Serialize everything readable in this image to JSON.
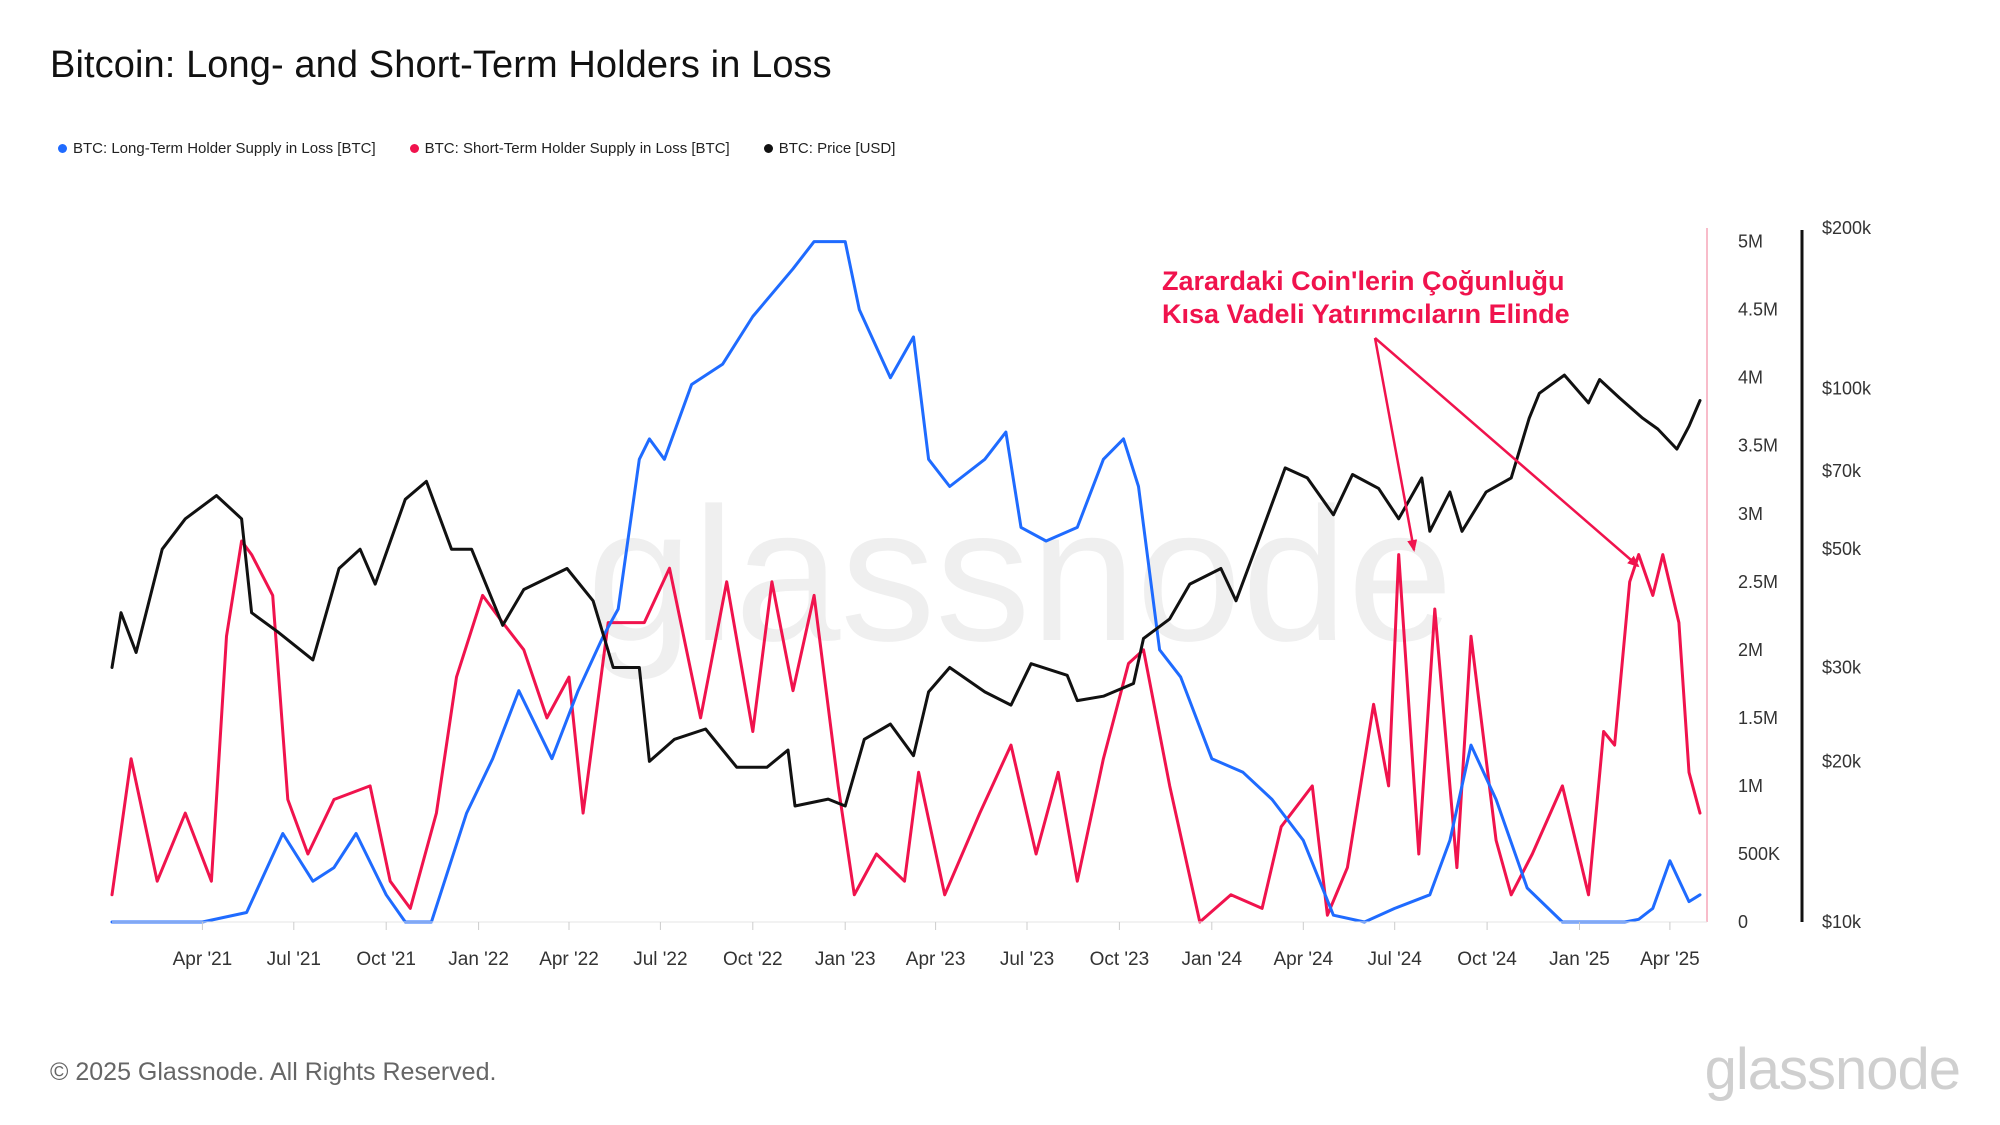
{
  "title": "Bitcoin: Long- and Short-Term Holders in Loss",
  "legend": [
    {
      "label": "BTC: Long-Term Holder Supply in Loss [BTC]",
      "color": "#1f6bff"
    },
    {
      "label": "BTC: Short-Term Holder Supply in Loss [BTC]",
      "color": "#f0134d"
    },
    {
      "label": "BTC: Price [USD]",
      "color": "#111111"
    }
  ],
  "annotation": {
    "line1": "Zarardaki Coin'lerin Çoğunluğu",
    "line2": "Kısa Vadeli Yatırımcıların Elinde",
    "color": "#f0134d"
  },
  "watermark": "glassnode",
  "footer": "© 2025 Glassnode. All Rights Reserved.",
  "brand": "glassnode",
  "chart_data": {
    "type": "line",
    "x_ticks": [
      "Apr '21",
      "Jul '21",
      "Oct '21",
      "Jan '22",
      "Apr '22",
      "Jul '22",
      "Oct '22",
      "Jan '23",
      "Apr '23",
      "Jul '23",
      "Oct '23",
      "Jan '24",
      "Apr '24",
      "Jul '24",
      "Oct '24",
      "Jan '25",
      "Apr '25"
    ],
    "x_range": [
      "2021-01-01",
      "2025-05-01"
    ],
    "y_left": {
      "ticks": [
        "0",
        "500K",
        "1M",
        "1.5M",
        "2M",
        "2.5M",
        "3M",
        "3.5M",
        "4M",
        "4.5M",
        "5M"
      ],
      "tick_values": [
        0,
        500000,
        1000000,
        1500000,
        2000000,
        2500000,
        3000000,
        3500000,
        4000000,
        4500000,
        5000000
      ],
      "range": [
        0,
        5100000
      ]
    },
    "y_right": {
      "scale": "log",
      "ticks": [
        "$10k",
        "$20k",
        "$30k",
        "$50k",
        "$70k",
        "$100k",
        "$200k"
      ],
      "tick_values": [
        10000,
        20000,
        30000,
        50000,
        70000,
        100000,
        200000
      ],
      "range": [
        10000,
        200000
      ]
    },
    "series": [
      {
        "name": "BTC: Long-Term Holder Supply in Loss [BTC]",
        "color": "#1f6bff",
        "axis": "left",
        "x": [
          "2021-01-01",
          "2021-04-01",
          "2021-05-15",
          "2021-06-20",
          "2021-07-20",
          "2021-08-10",
          "2021-09-01",
          "2021-10-01",
          "2021-10-20",
          "2021-11-15",
          "2021-12-20",
          "2022-01-15",
          "2022-02-10",
          "2022-03-15",
          "2022-04-10",
          "2022-05-05",
          "2022-05-20",
          "2022-06-10",
          "2022-06-20",
          "2022-07-05",
          "2022-08-01",
          "2022-09-01",
          "2022-10-01",
          "2022-11-10",
          "2022-12-01",
          "2023-01-01",
          "2023-01-15",
          "2023-02-15",
          "2023-03-10",
          "2023-03-25",
          "2023-04-15",
          "2023-05-20",
          "2023-06-10",
          "2023-06-25",
          "2023-07-20",
          "2023-08-20",
          "2023-09-15",
          "2023-10-05",
          "2023-10-20",
          "2023-11-10",
          "2023-12-01",
          "2024-01-01",
          "2024-02-01",
          "2024-03-01",
          "2024-04-01",
          "2024-05-01",
          "2024-06-01",
          "2024-07-01",
          "2024-08-05",
          "2024-08-25",
          "2024-09-15",
          "2024-10-10",
          "2024-11-10",
          "2024-12-15",
          "2025-01-15",
          "2025-02-15",
          "2025-03-01",
          "2025-03-15",
          "2025-04-01",
          "2025-04-20",
          "2025-05-01"
        ],
        "values": [
          0,
          0,
          70000,
          650000,
          300000,
          400000,
          650000,
          200000,
          0,
          0,
          800000,
          1200000,
          1700000,
          1200000,
          1700000,
          2100000,
          2300000,
          3400000,
          3550000,
          3400000,
          3950000,
          4100000,
          4450000,
          4800000,
          5000000,
          5000000,
          4500000,
          4000000,
          4300000,
          3400000,
          3200000,
          3400000,
          3600000,
          2900000,
          2800000,
          2900000,
          3400000,
          3550000,
          3200000,
          2000000,
          1800000,
          1200000,
          1100000,
          900000,
          600000,
          50000,
          0,
          100000,
          200000,
          600000,
          1300000,
          900000,
          250000,
          0,
          0,
          0,
          20000,
          100000,
          450000,
          150000,
          200000
        ]
      },
      {
        "name": "BTC: Short-Term Holder Supply in Loss [BTC]",
        "color": "#f0134d",
        "axis": "left",
        "x": [
          "2021-01-01",
          "2021-01-20",
          "2021-02-15",
          "2021-03-15",
          "2021-04-10",
          "2021-04-25",
          "2021-05-10",
          "2021-05-20",
          "2021-06-10",
          "2021-06-25",
          "2021-07-15",
          "2021-08-10",
          "2021-09-15",
          "2021-10-05",
          "2021-10-25",
          "2021-11-20",
          "2021-12-10",
          "2022-01-05",
          "2022-01-25",
          "2022-02-15",
          "2022-03-10",
          "2022-04-01",
          "2022-04-15",
          "2022-05-10",
          "2022-06-15",
          "2022-07-10",
          "2022-08-10",
          "2022-09-05",
          "2022-10-01",
          "2022-10-20",
          "2022-11-10",
          "2022-12-01",
          "2022-12-25",
          "2023-01-10",
          "2023-02-01",
          "2023-03-01",
          "2023-03-15",
          "2023-04-10",
          "2023-05-15",
          "2023-06-15",
          "2023-07-10",
          "2023-08-01",
          "2023-08-20",
          "2023-09-15",
          "2023-10-10",
          "2023-10-25",
          "2023-11-20",
          "2023-12-20",
          "2024-01-20",
          "2024-02-20",
          "2024-03-10",
          "2024-04-10",
          "2024-04-25",
          "2024-05-15",
          "2024-06-10",
          "2024-06-25",
          "2024-07-05",
          "2024-07-25",
          "2024-08-10",
          "2024-09-01",
          "2024-09-15",
          "2024-10-10",
          "2024-10-25",
          "2024-11-15",
          "2024-12-15",
          "2025-01-10",
          "2025-01-25",
          "2025-02-05",
          "2025-02-20",
          "2025-03-01",
          "2025-03-15",
          "2025-03-25",
          "2025-04-10",
          "2025-04-20",
          "2025-05-01"
        ],
        "values": [
          200000,
          1200000,
          300000,
          800000,
          300000,
          2100000,
          2800000,
          2700000,
          2400000,
          900000,
          500000,
          900000,
          1000000,
          300000,
          100000,
          800000,
          1800000,
          2400000,
          2200000,
          2000000,
          1500000,
          1800000,
          800000,
          2200000,
          2200000,
          2600000,
          1500000,
          2500000,
          1400000,
          2500000,
          1700000,
          2400000,
          1000000,
          200000,
          500000,
          300000,
          1100000,
          200000,
          800000,
          1300000,
          500000,
          1100000,
          300000,
          1200000,
          1900000,
          2000000,
          1000000,
          0,
          200000,
          100000,
          700000,
          1000000,
          50000,
          400000,
          1600000,
          1000000,
          2700000,
          500000,
          2300000,
          400000,
          2100000,
          600000,
          200000,
          500000,
          1000000,
          200000,
          1400000,
          1300000,
          2500000,
          2700000,
          2400000,
          2700000,
          2200000,
          1100000,
          800000
        ]
      },
      {
        "name": "BTC: Price [USD]",
        "color": "#111111",
        "axis": "right",
        "x": [
          "2021-01-01",
          "2021-01-10",
          "2021-01-25",
          "2021-02-20",
          "2021-03-15",
          "2021-04-15",
          "2021-05-10",
          "2021-05-20",
          "2021-06-15",
          "2021-07-20",
          "2021-08-15",
          "2021-09-05",
          "2021-09-20",
          "2021-10-20",
          "2021-11-10",
          "2021-12-05",
          "2021-12-25",
          "2022-01-25",
          "2022-02-15",
          "2022-03-30",
          "2022-04-25",
          "2022-05-15",
          "2022-06-10",
          "2022-06-20",
          "2022-07-15",
          "2022-08-15",
          "2022-09-15",
          "2022-10-15",
          "2022-11-05",
          "2022-11-12",
          "2022-12-15",
          "2023-01-01",
          "2023-01-20",
          "2023-02-15",
          "2023-03-10",
          "2023-03-25",
          "2023-04-15",
          "2023-05-20",
          "2023-06-15",
          "2023-07-05",
          "2023-08-10",
          "2023-08-20",
          "2023-09-15",
          "2023-10-15",
          "2023-10-25",
          "2023-11-20",
          "2023-12-10",
          "2024-01-10",
          "2024-01-25",
          "2024-02-15",
          "2024-03-14",
          "2024-04-05",
          "2024-05-01",
          "2024-05-20",
          "2024-06-15",
          "2024-07-05",
          "2024-07-28",
          "2024-08-05",
          "2024-08-25",
          "2024-09-06",
          "2024-09-30",
          "2024-10-25",
          "2024-11-12",
          "2024-11-22",
          "2024-12-17",
          "2025-01-10",
          "2025-01-21",
          "2025-02-10",
          "2025-03-05",
          "2025-03-20",
          "2025-04-08",
          "2025-04-20",
          "2025-05-01"
        ],
        "values": [
          30000,
          38000,
          32000,
          50000,
          57000,
          63000,
          57000,
          38000,
          35000,
          31000,
          46000,
          50000,
          43000,
          62000,
          67000,
          50000,
          50000,
          36000,
          42000,
          46000,
          40000,
          30000,
          30000,
          20000,
          22000,
          23000,
          19500,
          19500,
          21000,
          16500,
          17000,
          16500,
          22000,
          23500,
          20500,
          27000,
          30000,
          27000,
          25500,
          30500,
          29000,
          26000,
          26500,
          28000,
          34000,
          37000,
          43000,
          46000,
          40000,
          51000,
          71000,
          68000,
          58000,
          69000,
          65000,
          57000,
          68000,
          54000,
          64000,
          54000,
          64000,
          68000,
          88000,
          98000,
          106000,
          94000,
          104000,
          96000,
          88000,
          84000,
          77000,
          85000,
          95000
        ]
      }
    ],
    "grid": false,
    "legend_position": "top-left"
  }
}
